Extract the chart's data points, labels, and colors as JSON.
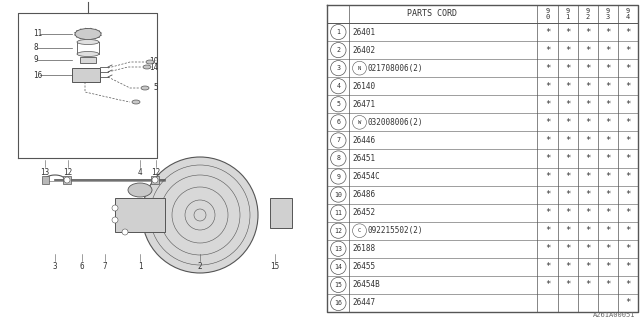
{
  "header": "PARTS CORD",
  "year_cols": [
    "9\n0",
    "9\n1",
    "9\n2",
    "9\n3",
    "9\n4"
  ],
  "rows": [
    {
      "num": "1",
      "code": "26401",
      "stars": [
        1,
        1,
        1,
        1,
        1
      ]
    },
    {
      "num": "2",
      "code": "26402",
      "stars": [
        1,
        1,
        1,
        1,
        1
      ]
    },
    {
      "num": "3",
      "code": "(N)021708006(2)",
      "stars": [
        1,
        1,
        1,
        1,
        1
      ]
    },
    {
      "num": "4",
      "code": "26140",
      "stars": [
        1,
        1,
        1,
        1,
        1
      ]
    },
    {
      "num": "5",
      "code": "26471",
      "stars": [
        1,
        1,
        1,
        1,
        1
      ]
    },
    {
      "num": "6",
      "code": "(W)032008006(2)",
      "stars": [
        1,
        1,
        1,
        1,
        1
      ]
    },
    {
      "num": "7",
      "code": "26446",
      "stars": [
        1,
        1,
        1,
        1,
        1
      ]
    },
    {
      "num": "8",
      "code": "26451",
      "stars": [
        1,
        1,
        1,
        1,
        1
      ]
    },
    {
      "num": "9",
      "code": "26454C",
      "stars": [
        1,
        1,
        1,
        1,
        1
      ]
    },
    {
      "num": "10",
      "code": "26486",
      "stars": [
        1,
        1,
        1,
        1,
        1
      ]
    },
    {
      "num": "11",
      "code": "26452",
      "stars": [
        1,
        1,
        1,
        1,
        1
      ]
    },
    {
      "num": "12",
      "code": "(C)092215502(2)",
      "stars": [
        1,
        1,
        1,
        1,
        1
      ]
    },
    {
      "num": "13",
      "code": "26188",
      "stars": [
        1,
        1,
        1,
        1,
        1
      ]
    },
    {
      "num": "14",
      "code": "26455",
      "stars": [
        1,
        1,
        1,
        1,
        1
      ]
    },
    {
      "num": "15",
      "code": "26454B",
      "stars": [
        1,
        1,
        1,
        1,
        1
      ]
    },
    {
      "num": "16",
      "code": "26447",
      "stars": [
        0,
        0,
        0,
        0,
        1
      ]
    }
  ],
  "watermark": "A261A00051",
  "gray": "#555555",
  "text_color": "#333333",
  "circle_prefixes": {
    "3": "N",
    "6": "W",
    "12": "C"
  },
  "circle_prefix_codes": {
    "3": "021708006(2)",
    "6": "032008006(2)",
    "12": "092215502(2)"
  }
}
